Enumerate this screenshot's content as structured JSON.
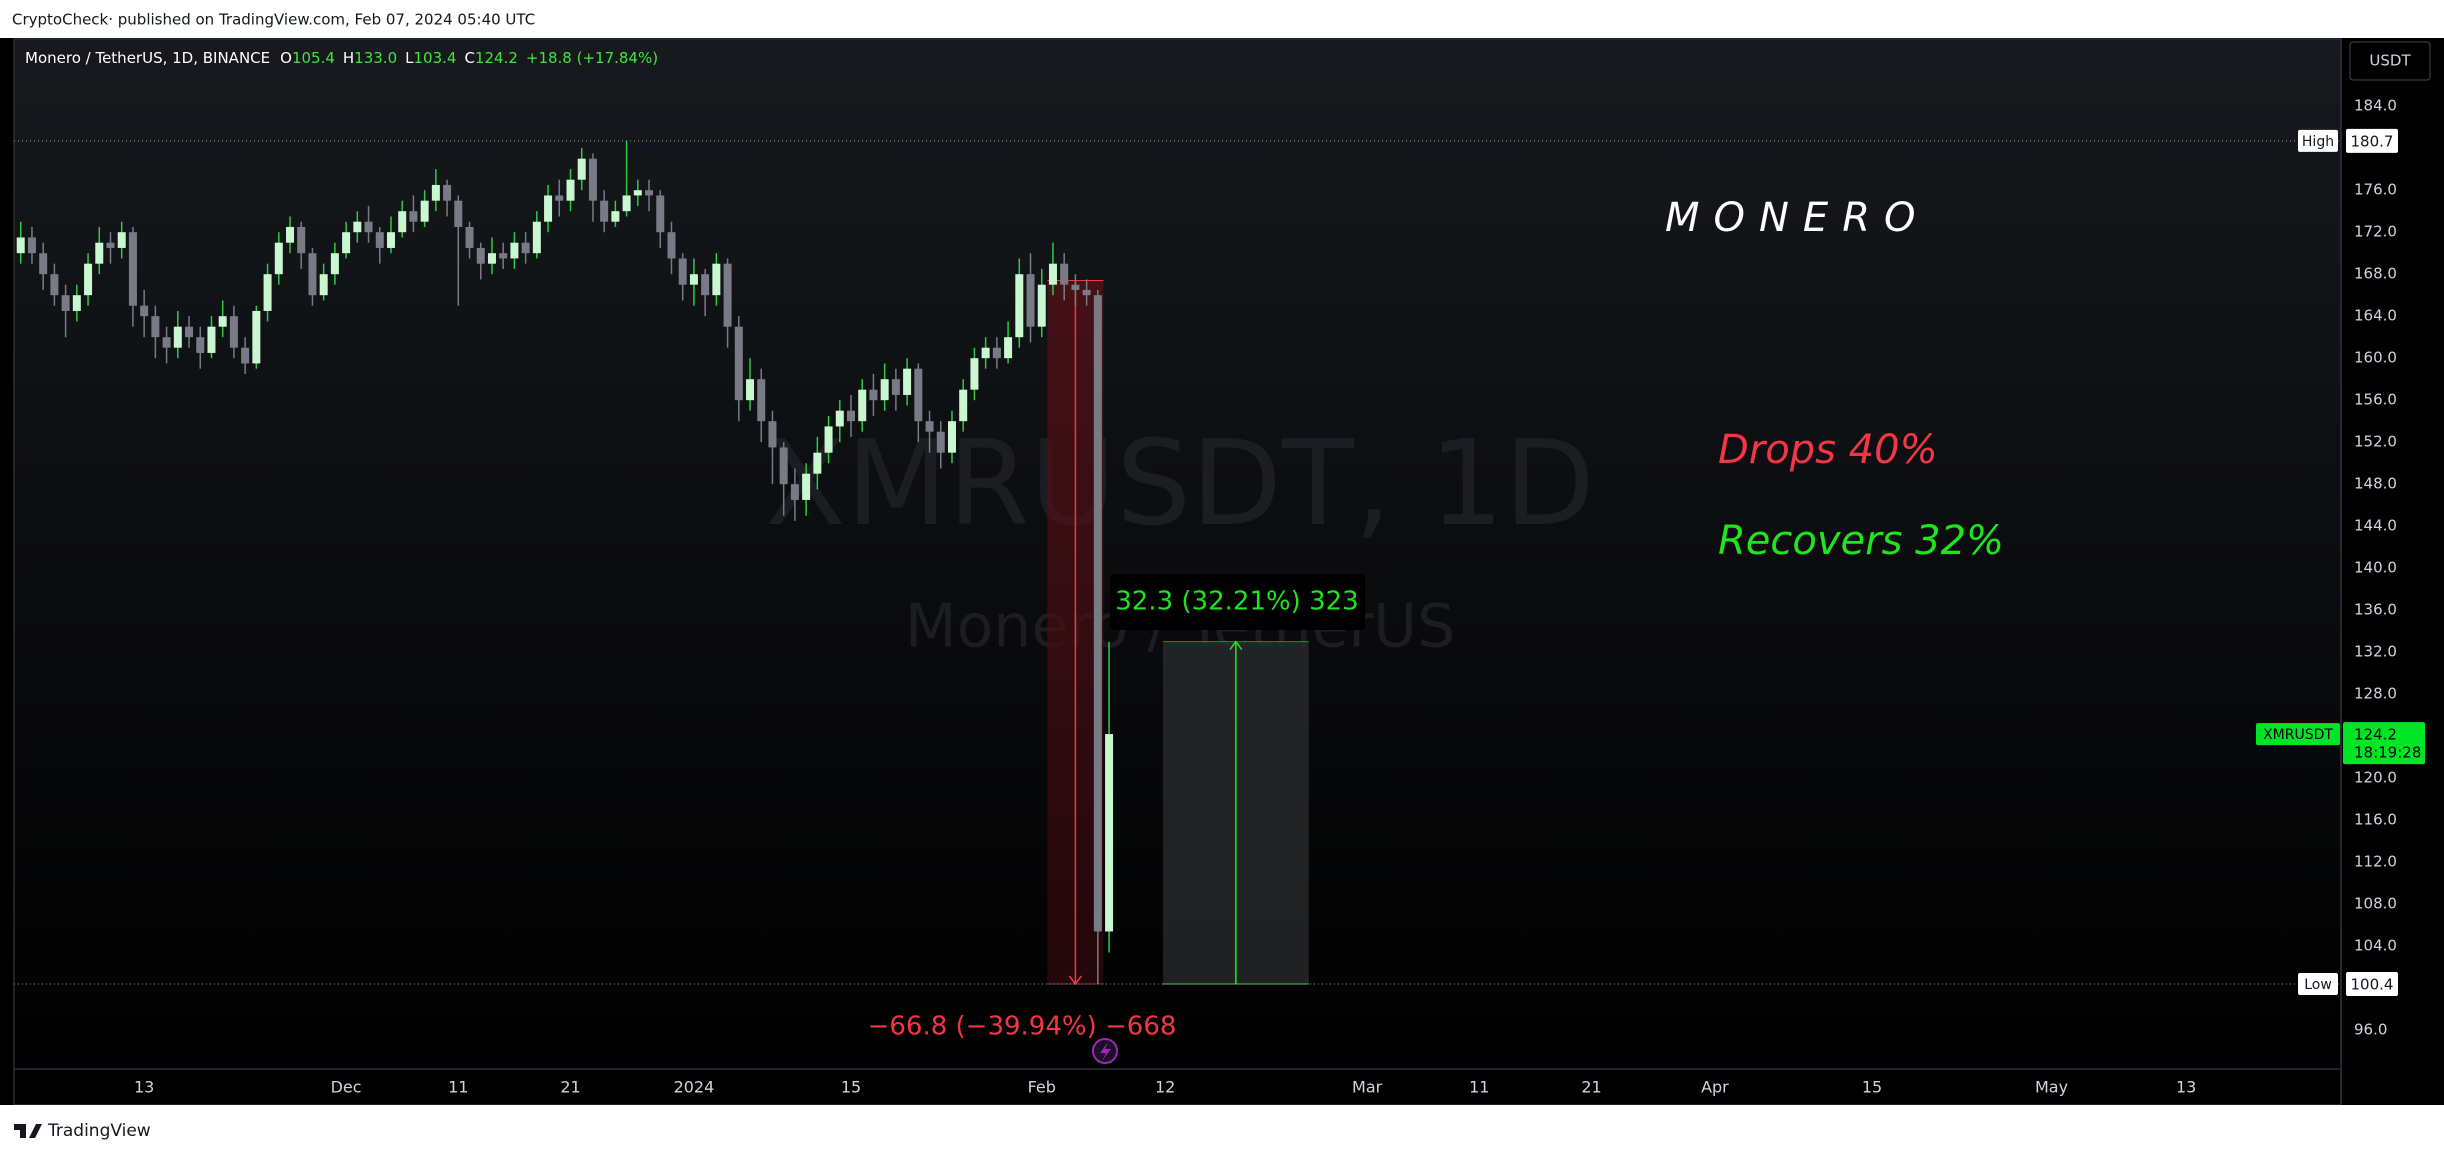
{
  "header": {
    "publisher": "CryptoCheck· published on TradingView.com, Feb 07, 2024 05:40 UTC",
    "brand": "TradingView"
  },
  "chart_data": {
    "type": "candlestick",
    "legend": {
      "symbol": "Monero / TetherUS, 1D, BINANCE",
      "o_label": "O",
      "o": "105.4",
      "h_label": "H",
      "h": "133.0",
      "l_label": "L",
      "l": "103.4",
      "c_label": "C",
      "c": "124.2",
      "change": "+18.8 (+17.84%)"
    },
    "watermark": [
      "XMRUSDT, 1D",
      "Monero / TetherUS"
    ],
    "x": [
      1,
      2,
      3,
      4,
      5,
      6,
      7,
      8,
      9,
      10,
      11,
      12,
      13,
      14,
      15,
      16,
      17,
      18,
      19,
      20,
      21,
      22,
      23,
      24,
      25,
      26,
      27,
      28,
      29,
      30,
      31,
      32,
      33,
      34,
      35,
      36,
      37,
      38,
      39,
      40,
      41,
      42,
      43,
      44,
      45,
      46,
      47,
      48,
      49,
      50,
      51,
      52,
      53,
      54,
      55,
      56,
      57,
      58,
      59,
      60,
      61,
      62,
      63,
      64,
      65,
      66,
      67,
      68,
      69,
      70,
      71,
      72,
      73,
      74,
      75,
      76,
      77,
      78,
      79,
      80,
      81,
      82,
      83,
      84,
      85,
      86,
      87,
      88,
      89,
      90,
      91,
      92,
      93,
      94,
      95,
      96,
      97,
      98
    ],
    "open": [
      170,
      171.5,
      170,
      168,
      166,
      164.5,
      166,
      169,
      171,
      170.5,
      172,
      165,
      164,
      162,
      161,
      163,
      162,
      160.5,
      163,
      164,
      161,
      159.5,
      164.5,
      168,
      171,
      172.5,
      170,
      166,
      168,
      170,
      172,
      173,
      172,
      170.5,
      172,
      174,
      173,
      175,
      176.5,
      175,
      172.5,
      170.5,
      169,
      170,
      169.5,
      171,
      170,
      173,
      175.5,
      175,
      177,
      179,
      175,
      173,
      174,
      175.5,
      176,
      175.5,
      172,
      169.5,
      167,
      168,
      166,
      169,
      163,
      156,
      158,
      154,
      151.5,
      148,
      146.5,
      149,
      151,
      153.5,
      155,
      154,
      157,
      156,
      158,
      156.5,
      159,
      154,
      153,
      151,
      154,
      157,
      160,
      161,
      160,
      162,
      168,
      163,
      167,
      169,
      167,
      166.5,
      166,
      105.4
    ],
    "high": [
      173,
      172.5,
      171,
      169,
      167,
      167,
      170,
      172.5,
      172,
      173,
      172.5,
      166.5,
      165,
      163,
      164.5,
      164,
      163,
      164,
      165.5,
      165,
      162,
      165,
      169,
      172,
      173.5,
      173,
      170.5,
      169,
      171,
      173,
      174,
      174.5,
      172.5,
      173.5,
      175,
      175.5,
      176,
      178,
      177,
      175.5,
      173,
      171,
      171.5,
      171,
      172,
      172,
      174,
      176.5,
      177,
      178,
      180,
      179.5,
      176,
      175,
      180.7,
      177,
      177,
      176,
      173,
      170,
      169.5,
      168.5,
      170,
      169.5,
      164,
      160,
      159,
      155,
      152,
      149.5,
      150,
      152.5,
      154.5,
      156,
      156.5,
      158,
      158.5,
      159.5,
      159,
      160,
      159.5,
      155,
      154,
      155,
      158,
      161,
      162,
      162,
      163.5,
      169.5,
      170,
      168.5,
      171,
      170,
      168,
      167.5,
      166.5,
      133
    ],
    "low": [
      169,
      169,
      166.5,
      165,
      162,
      163.5,
      165,
      168,
      169,
      169.5,
      163,
      162,
      160,
      159.5,
      160,
      161,
      159,
      160,
      162,
      160,
      158.5,
      159,
      163.5,
      167,
      170,
      168.5,
      165,
      165.5,
      167,
      169.5,
      171,
      171,
      169,
      170,
      171.5,
      172,
      172.5,
      174,
      173.5,
      165,
      169.5,
      167.5,
      168,
      168.5,
      168.5,
      169,
      169.5,
      172,
      173.5,
      174,
      176,
      173,
      172,
      172.5,
      173.5,
      174.5,
      174,
      170.5,
      168,
      165.5,
      165,
      164,
      165,
      161,
      154,
      155,
      152,
      148,
      145,
      144.5,
      145,
      147.5,
      150,
      152,
      152.5,
      153,
      154.5,
      155,
      155,
      155.5,
      152,
      151,
      149.5,
      150,
      153,
      156,
      159,
      159,
      159.5,
      161,
      161.5,
      162,
      166,
      165.5,
      165,
      165,
      100.4,
      103.4
    ],
    "close": [
      171.5,
      170,
      168,
      166,
      164.5,
      166,
      169,
      171,
      170.5,
      172,
      165,
      164,
      162,
      161,
      163,
      162,
      160.5,
      163,
      164,
      161,
      159.5,
      164.5,
      168,
      171,
      172.5,
      170,
      166,
      168,
      170,
      172,
      173,
      172,
      170.5,
      172,
      174,
      173,
      175,
      176.5,
      175,
      172.5,
      170.5,
      169,
      170,
      169.5,
      171,
      170,
      173,
      175.5,
      175,
      177,
      179,
      175,
      173,
      174,
      175.5,
      176,
      175.5,
      172,
      169.5,
      167,
      168,
      166,
      169,
      163,
      156,
      158,
      154,
      151.5,
      148,
      146.5,
      149,
      151,
      153.5,
      155,
      154,
      157,
      156,
      158,
      156.5,
      159,
      154,
      153,
      151,
      154,
      157,
      160,
      161,
      160,
      162,
      168,
      163,
      167,
      169,
      167,
      166.5,
      166,
      105.4,
      124.2
    ],
    "up_color": "#c8f7d0",
    "up_wick_color": "#2ecc40",
    "down_color": "#787b86",
    "xlim": [
      0.4,
      207.8
    ],
    "xticks": [
      {
        "value": 12,
        "label": "13"
      },
      {
        "value": 30,
        "label": "Dec"
      },
      {
        "value": 40,
        "label": "11"
      },
      {
        "value": 50,
        "label": "21"
      },
      {
        "value": 61,
        "label": "2024"
      },
      {
        "value": 75,
        "label": "15"
      },
      {
        "value": 92,
        "label": "Feb"
      },
      {
        "value": 103,
        "label": "12"
      },
      {
        "value": 121,
        "label": "Mar"
      },
      {
        "value": 131,
        "label": "11"
      },
      {
        "value": 141,
        "label": "21"
      },
      {
        "value": 152,
        "label": "Apr"
      },
      {
        "value": 166,
        "label": "15"
      },
      {
        "value": 182,
        "label": "May"
      },
      {
        "value": 194,
        "label": "13"
      }
    ],
    "ylim": [
      92.3,
      190.4
    ],
    "yticks": [
      {
        "value": 184,
        "label": "184.0"
      },
      {
        "value": 176,
        "label": "176.0"
      },
      {
        "value": 172,
        "label": "172.0"
      },
      {
        "value": 168,
        "label": "168.0"
      },
      {
        "value": 164,
        "label": "164.0"
      },
      {
        "value": 160,
        "label": "160.0"
      },
      {
        "value": 156,
        "label": "156.0"
      },
      {
        "value": 152,
        "label": "152.0"
      },
      {
        "value": 148,
        "label": "148.0"
      },
      {
        "value": 144,
        "label": "144.0"
      },
      {
        "value": 140,
        "label": "140.0"
      },
      {
        "value": 136,
        "label": "136.0"
      },
      {
        "value": 132,
        "label": "132.0"
      },
      {
        "value": 128,
        "label": "128.0"
      },
      {
        "value": 120,
        "label": "120.0"
      },
      {
        "value": 116,
        "label": "116.0"
      },
      {
        "value": 112,
        "label": "112.0"
      },
      {
        "value": 108,
        "label": "108.0"
      },
      {
        "value": 104,
        "label": "104.0"
      },
      {
        "value": 96,
        "label": "96.0"
      }
    ],
    "axis_unit": "USDT",
    "price_tags": {
      "high": {
        "label": "High",
        "value": 180.7
      },
      "low": {
        "label": "Low",
        "value": 100.4
      },
      "last": {
        "symbol": "XMRUSDT",
        "value": 124.2,
        "countdown": "18:19:28",
        "color": "#00e626"
      }
    },
    "annotations": [
      {
        "text": "MONERO",
        "color": "#ffffff"
      },
      {
        "text": "Drops 40%",
        "color": "#f23645"
      },
      {
        "text": "Recovers 32%",
        "color": "#1fe51f"
      }
    ],
    "measures": [
      {
        "x": [
          92.5,
          97.5
        ],
        "y": [
          167.4,
          100.4
        ],
        "label": "−66.8 (−39.94%) −668",
        "color": "#f23645"
      },
      {
        "x": [
          102.8,
          115.8
        ],
        "y": [
          100.4,
          133
        ],
        "label": "32.3 (32.21%) 323",
        "color": "#1fe51f"
      }
    ]
  }
}
